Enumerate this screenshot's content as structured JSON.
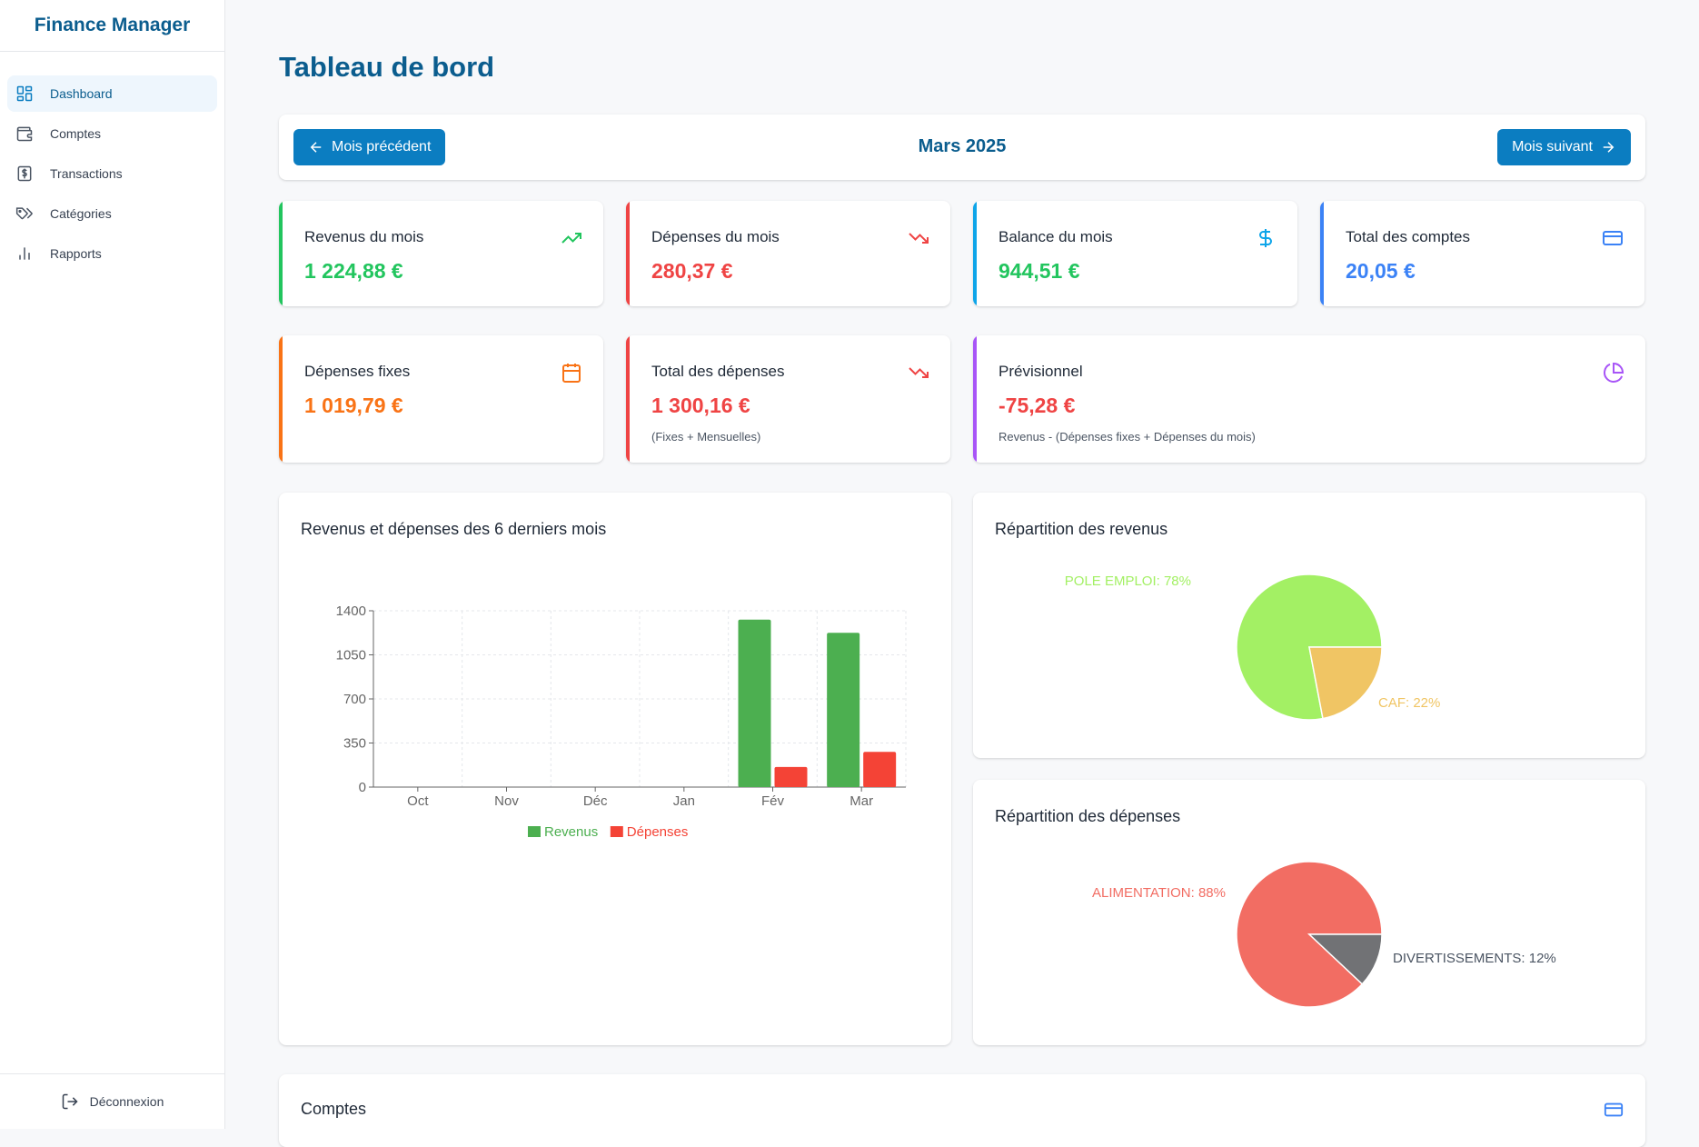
{
  "app": {
    "title": "Finance Manager"
  },
  "sidebar": {
    "items": [
      {
        "label": "Dashboard",
        "icon": "dashboard-icon",
        "active": true
      },
      {
        "label": "Comptes",
        "icon": "wallet-icon"
      },
      {
        "label": "Transactions",
        "icon": "dollar-receipt-icon"
      },
      {
        "label": "Catégories",
        "icon": "tags-icon"
      },
      {
        "label": "Rapports",
        "icon": "bar-chart-icon"
      }
    ],
    "logout_label": "Déconnexion"
  },
  "page": {
    "title": "Tableau de bord"
  },
  "month_nav": {
    "prev_label": "Mois précédent",
    "current": "Mars 2025",
    "next_label": "Mois suivant"
  },
  "stats": {
    "revenus": {
      "label": "Revenus du mois",
      "value": "1 224,88 €",
      "color": "#22c55e",
      "icon": "trending-up-icon"
    },
    "depenses": {
      "label": "Dépenses du mois",
      "value": "280,37 €",
      "color": "#ef4444",
      "icon": "trending-down-icon"
    },
    "balance": {
      "label": "Balance du mois",
      "value": "944,51 €",
      "color": "#22c55e",
      "accent": "#0ea5e9",
      "icon": "dollar-icon"
    },
    "total_comptes": {
      "label": "Total des comptes",
      "value": "20,05 €",
      "color": "#3b82f6",
      "icon": "credit-card-icon"
    },
    "fixes": {
      "label": "Dépenses fixes",
      "value": "1 019,79 €",
      "color": "#f97316",
      "icon": "calendar-icon"
    },
    "total_depenses": {
      "label": "Total des dépenses",
      "value": "1 300,16 €",
      "sub": "(Fixes + Mensuelles)",
      "color": "#ef4444",
      "icon": "trending-down-icon"
    },
    "previsionnel": {
      "label": "Prévisionnel",
      "value": "-75,28 €",
      "sub": "Revenus - (Dépenses fixes + Dépenses du mois)",
      "color": "#ef4444",
      "accent": "#a855f7",
      "icon": "pie-chart-icon"
    }
  },
  "panels": {
    "bar_title": "Revenus et dépenses des 6 derniers mois",
    "revenus_pie_title": "Répartition des revenus",
    "depenses_pie_title": "Répartition des dépenses",
    "comptes_title": "Comptes"
  },
  "chart_data": [
    {
      "type": "bar",
      "title": "Revenus et dépenses des 6 derniers mois",
      "categories": [
        "Oct",
        "Nov",
        "Déc",
        "Jan",
        "Fév",
        "Mar"
      ],
      "series": [
        {
          "name": "Revenus",
          "color": "#4caf50",
          "values": [
            0,
            0,
            0,
            0,
            1330,
            1225
          ]
        },
        {
          "name": "Dépenses",
          "color": "#f44336",
          "values": [
            0,
            0,
            0,
            0,
            160,
            280
          ]
        }
      ],
      "ylim": [
        0,
        1400
      ],
      "yticks": [
        0,
        350,
        700,
        1050,
        1400
      ],
      "grid": true,
      "legend": "bottom"
    },
    {
      "type": "pie",
      "title": "Répartition des revenus",
      "slices": [
        {
          "label": "POLE EMPLOI: 78%",
          "value": 78,
          "color": "#a3f064"
        },
        {
          "label": "CAF: 22%",
          "value": 22,
          "color": "#f0c564"
        }
      ]
    },
    {
      "type": "pie",
      "title": "Répartition des dépenses",
      "slices": [
        {
          "label": "ALIMENTATION: 88%",
          "value": 88,
          "color": "#f26d63"
        },
        {
          "label": "DIVERTISSEMENTS: 12%",
          "value": 12,
          "color": "#717275"
        }
      ]
    }
  ]
}
